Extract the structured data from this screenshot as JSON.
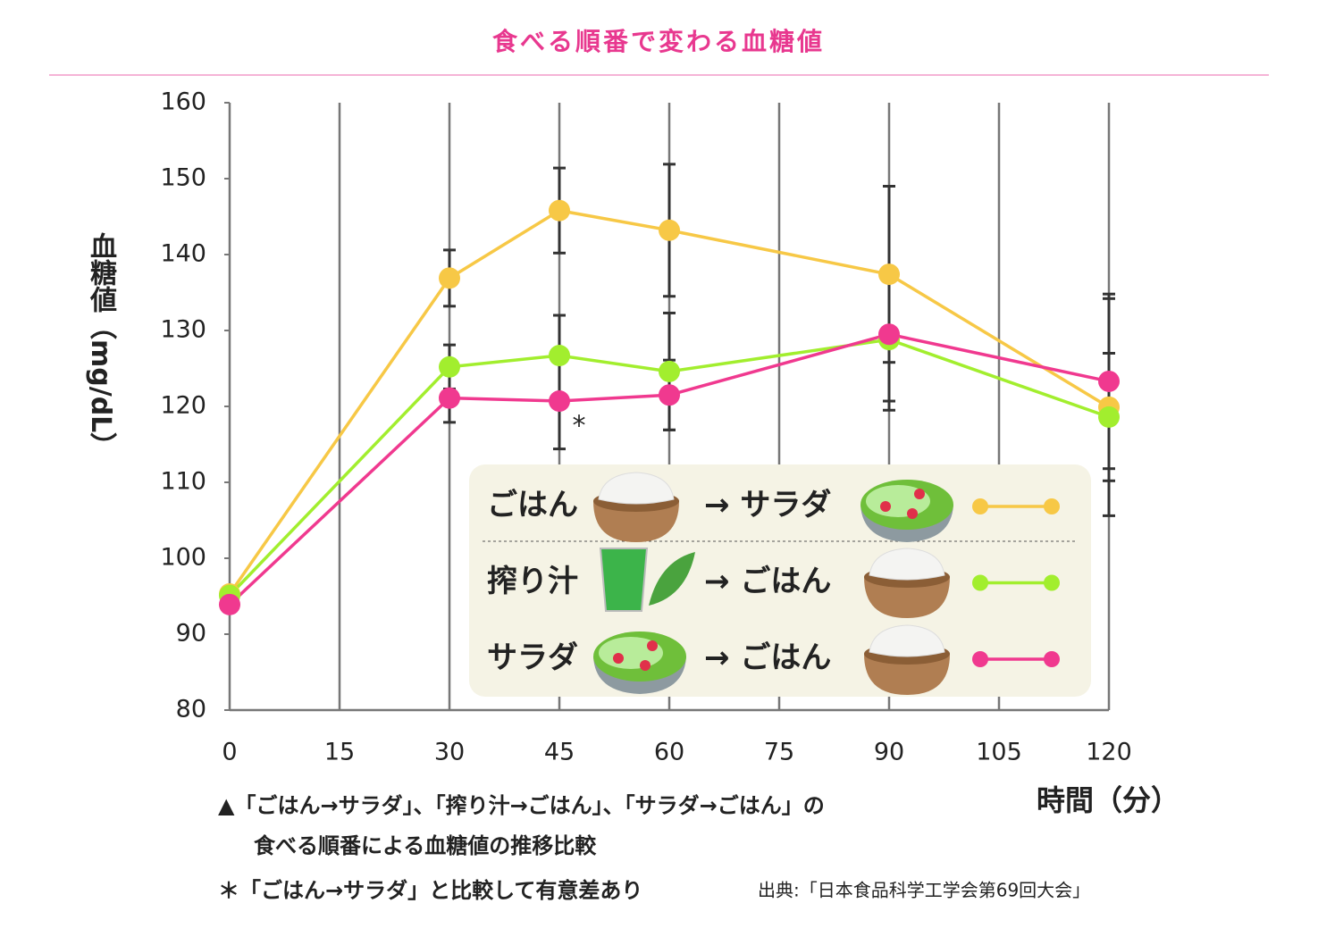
{
  "chart_data": {
    "type": "line",
    "title": "食べる順番で変わる血糖値",
    "y_label": "血糖値（mg/dL）",
    "x_label": "時間（分）",
    "x": [
      0,
      30,
      45,
      60,
      90,
      120
    ],
    "series": [
      {
        "name": [
          "ごはん",
          "→ サラダ"
        ],
        "color": "#f7c846",
        "values": [
          95.3,
          136.9,
          145.8,
          143.2,
          137.4,
          119.9
        ],
        "errors": [
          null,
          3.7,
          5.6,
          8.7,
          11.6,
          14.3
        ]
      },
      {
        "name": [
          "搾り汁",
          "→ ごはん"
        ],
        "color": "#a2ee2e",
        "values": [
          95.1,
          125.2,
          126.7,
          124.6,
          128.8,
          118.6
        ],
        "errors": [
          null,
          2.9,
          5.3,
          7.7,
          9.3,
          8.4
        ]
      },
      {
        "name": [
          "サラダ",
          "→ ごはん"
        ],
        "color": "#f0398f",
        "values": [
          93.9,
          121.1,
          120.7,
          121.5,
          129.5,
          123.3
        ],
        "errors": [
          null,
          3.2,
          6.3,
          4.6,
          8.8,
          11.5
        ]
      }
    ],
    "annotation": "*",
    "xlim": [
      0,
      120
    ],
    "xticks": [
      0,
      15,
      30,
      45,
      60,
      75,
      90,
      105,
      120
    ],
    "ylim": [
      80,
      160
    ],
    "yticks": [
      80,
      90,
      100,
      110,
      120,
      130,
      140,
      150,
      160
    ],
    "grid": true,
    "notes": [
      "▲「ごはん→サラダ」、「搾り汁→ごはん」、「サラダ→ごはん」の",
      "食べる順番による血糖値の推移比較",
      "＊「ごはん→サラダ」と比較して有意差あり"
    ],
    "source": "出典:「日本食品科学工学会第69回大会」"
  }
}
